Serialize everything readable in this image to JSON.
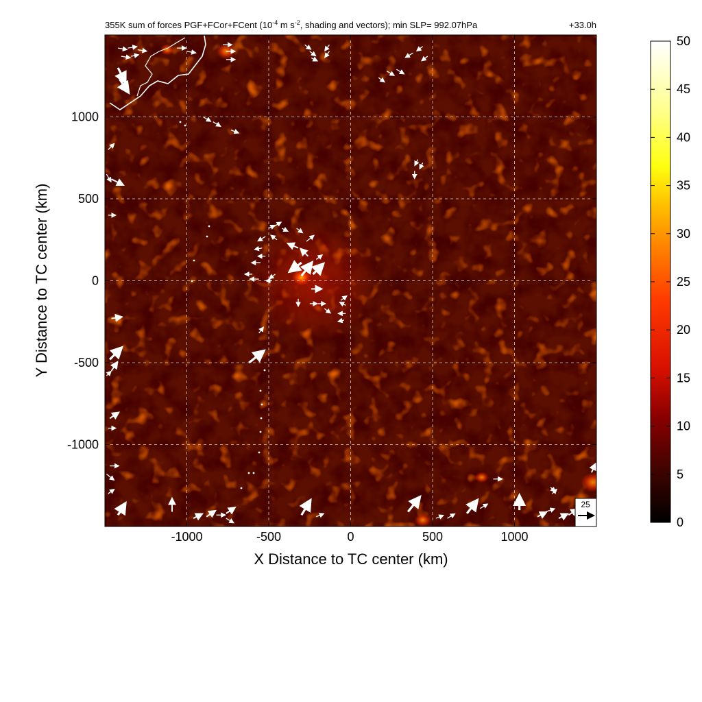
{
  "chart_data": {
    "type": "heatmap",
    "title": "355K sum of forces PGF+FCor+FCent (10-4 m s-2, shading and vectors); min SLP= 992.07hPa",
    "title_parts": {
      "pre": "355K sum of forces PGF+FCor+FCent (10",
      "exp1": "-4",
      "mid": " m s",
      "exp2": "-2",
      "post": ", shading and vectors); min SLP= 992.07hPa"
    },
    "time_label": "+33.0h",
    "xlabel": "X Distance to TC center (km)",
    "ylabel": "Y Distance to TC center (km)",
    "xlim": [
      -1500,
      1500
    ],
    "ylim": [
      -1500,
      1500
    ],
    "x_ticks": [
      -1000,
      -500,
      0,
      500,
      1000
    ],
    "y_ticks": [
      -1000,
      -500,
      0,
      500,
      1000
    ],
    "x_tick_labels": [
      "-1000",
      "-500",
      "0",
      "500",
      "1000"
    ],
    "y_tick_labels": [
      "-1000",
      "-500",
      "0",
      "500",
      "1000"
    ],
    "grid": true,
    "colorbar": {
      "min": 0,
      "max": 50,
      "ticks": [
        0,
        5,
        10,
        15,
        20,
        25,
        30,
        35,
        40,
        45,
        50
      ],
      "tick_labels": [
        "0",
        "5",
        "10",
        "15",
        "20",
        "25",
        "30",
        "35",
        "40",
        "45",
        "50"
      ],
      "colormap": [
        "#000000",
        "#8b0000",
        "#d81000",
        "#ff5a00",
        "#ffd000",
        "#ffff40",
        "#ffffff"
      ]
    },
    "background_color": "#5a0f00",
    "reference_vector": {
      "label": "25",
      "magnitude": 25
    },
    "vectors": [
      {
        "x": -1420,
        "y": 1420,
        "u": 6,
        "v": -1
      },
      {
        "x": -1360,
        "y": 1420,
        "u": 6,
        "v": 1
      },
      {
        "x": -1300,
        "y": 1410,
        "u": 6,
        "v": -1
      },
      {
        "x": -1400,
        "y": 1370,
        "u": 6,
        "v": -1
      },
      {
        "x": -1340,
        "y": 1370,
        "u": 5,
        "v": 1
      },
      {
        "x": -1420,
        "y": 1300,
        "u": 5,
        "v": -10
      },
      {
        "x": -1410,
        "y": 1230,
        "u": 6,
        "v": -9
      },
      {
        "x": -1060,
        "y": 1420,
        "u": 6,
        "v": 0
      },
      {
        "x": -1000,
        "y": 1400,
        "u": 6,
        "v": -1
      },
      {
        "x": -780,
        "y": 1440,
        "u": 6,
        "v": 0
      },
      {
        "x": -760,
        "y": 1400,
        "u": 6,
        "v": 0
      },
      {
        "x": -760,
        "y": 1350,
        "u": 6,
        "v": 0
      },
      {
        "x": -280,
        "y": 1440,
        "u": 4,
        "v": -3
      },
      {
        "x": -250,
        "y": 1400,
        "u": 4,
        "v": -3
      },
      {
        "x": -240,
        "y": 1360,
        "u": 4,
        "v": -2
      },
      {
        "x": -130,
        "y": 1440,
        "u": -3,
        "v": -4
      },
      {
        "x": -130,
        "y": 1400,
        "u": -3,
        "v": -4
      },
      {
        "x": 380,
        "y": 1390,
        "u": -5,
        "v": -3
      },
      {
        "x": 440,
        "y": 1430,
        "u": -4,
        "v": -3
      },
      {
        "x": 470,
        "y": 1370,
        "u": -4,
        "v": -3
      },
      {
        "x": 220,
        "y": 1280,
        "u": 5,
        "v": -3
      },
      {
        "x": 280,
        "y": 1290,
        "u": 5,
        "v": -3
      },
      {
        "x": 170,
        "y": 1240,
        "u": 4,
        "v": -3
      },
      {
        "x": -900,
        "y": 1000,
        "u": 5,
        "v": -3
      },
      {
        "x": -840,
        "y": 970,
        "u": 5,
        "v": -3
      },
      {
        "x": -730,
        "y": 920,
        "u": 5,
        "v": -2
      },
      {
        "x": -1480,
        "y": 800,
        "u": 4,
        "v": 4
      },
      {
        "x": -1490,
        "y": 650,
        "u": 3,
        "v": -5
      },
      {
        "x": -1460,
        "y": 620,
        "u": 8,
        "v": -4
      },
      {
        "x": -1480,
        "y": 400,
        "u": 5,
        "v": 0
      },
      {
        "x": 410,
        "y": 740,
        "u": -2,
        "v": -4
      },
      {
        "x": 440,
        "y": 720,
        "u": -2,
        "v": -4
      },
      {
        "x": 390,
        "y": 670,
        "u": 0,
        "v": -5
      },
      {
        "x": -500,
        "y": 320,
        "u": 4,
        "v": 2
      },
      {
        "x": -470,
        "y": 330,
        "u": 5,
        "v": 3
      },
      {
        "x": -420,
        "y": 320,
        "u": 4,
        "v": -2
      },
      {
        "x": -520,
        "y": 270,
        "u": -5,
        "v": -3
      },
      {
        "x": -450,
        "y": 250,
        "u": -4,
        "v": 3
      },
      {
        "x": -540,
        "y": 200,
        "u": -5,
        "v": -1
      },
      {
        "x": -520,
        "y": 150,
        "u": -5,
        "v": 0
      },
      {
        "x": -550,
        "y": 110,
        "u": -6,
        "v": 0
      },
      {
        "x": -600,
        "y": 40,
        "u": -5,
        "v": 0
      },
      {
        "x": -560,
        "y": 10,
        "u": -6,
        "v": 0
      },
      {
        "x": -460,
        "y": 40,
        "u": -4,
        "v": -3
      },
      {
        "x": -480,
        "y": 0,
        "u": -4,
        "v": 0
      },
      {
        "x": -330,
        "y": 320,
        "u": 4,
        "v": -3
      },
      {
        "x": -270,
        "y": 240,
        "u": 5,
        "v": 4
      },
      {
        "x": -320,
        "y": 200,
        "u": -7,
        "v": 3
      },
      {
        "x": -260,
        "y": 150,
        "u": -5,
        "v": 5
      },
      {
        "x": -300,
        "y": 110,
        "u": -8,
        "v": -6
      },
      {
        "x": -210,
        "y": 130,
        "u": 4,
        "v": 3
      },
      {
        "x": -300,
        "y": 30,
        "u": 7,
        "v": 9
      },
      {
        "x": -230,
        "y": 40,
        "u": 7,
        "v": 7
      },
      {
        "x": -240,
        "y": -50,
        "u": 7,
        "v": 0
      },
      {
        "x": -320,
        "y": -110,
        "u": 0,
        "v": -5
      },
      {
        "x": -250,
        "y": -140,
        "u": 5,
        "v": 0
      },
      {
        "x": -200,
        "y": -140,
        "u": 5,
        "v": 0
      },
      {
        "x": -160,
        "y": -170,
        "u": 4,
        "v": -3
      },
      {
        "x": -60,
        "y": -120,
        "u": 4,
        "v": 3
      },
      {
        "x": -30,
        "y": -150,
        "u": -4,
        "v": 2
      },
      {
        "x": -30,
        "y": -200,
        "u": -5,
        "v": 0
      },
      {
        "x": -40,
        "y": -240,
        "u": -4,
        "v": -1
      },
      {
        "x": -560,
        "y": -320,
        "u": 3,
        "v": 4
      },
      {
        "x": -620,
        "y": -500,
        "u": 10,
        "v": 8
      },
      {
        "x": -1460,
        "y": -230,
        "u": 7,
        "v": 1
      },
      {
        "x": -1470,
        "y": -480,
        "u": 8,
        "v": 8
      },
      {
        "x": -1460,
        "y": -550,
        "u": 4,
        "v": 6
      },
      {
        "x": -1490,
        "y": -580,
        "u": 3,
        "v": 3
      },
      {
        "x": -1470,
        "y": -840,
        "u": 6,
        "v": 4
      },
      {
        "x": -1480,
        "y": -900,
        "u": 5,
        "v": 0
      },
      {
        "x": -1470,
        "y": -1130,
        "u": 6,
        "v": 0
      },
      {
        "x": -1490,
        "y": -1180,
        "u": 5,
        "v": -4
      },
      {
        "x": -1480,
        "y": -1300,
        "u": 4,
        "v": 3
      },
      {
        "x": -1420,
        "y": -1430,
        "u": 5,
        "v": 8
      },
      {
        "x": -1090,
        "y": -1410,
        "u": 0,
        "v": 9
      },
      {
        "x": -960,
        "y": -1450,
        "u": 6,
        "v": 3
      },
      {
        "x": -880,
        "y": -1440,
        "u": 6,
        "v": 4
      },
      {
        "x": -820,
        "y": -1430,
        "u": 6,
        "v": 0
      },
      {
        "x": -760,
        "y": -1450,
        "u": 5,
        "v": -3
      },
      {
        "x": -760,
        "y": -1420,
        "u": 6,
        "v": 4
      },
      {
        "x": -300,
        "y": -1430,
        "u": 6,
        "v": 10
      },
      {
        "x": -210,
        "y": -1440,
        "u": 5,
        "v": 2
      },
      {
        "x": 350,
        "y": -1410,
        "u": 8,
        "v": 10
      },
      {
        "x": 520,
        "y": -1450,
        "u": 5,
        "v": 2
      },
      {
        "x": 590,
        "y": -1450,
        "u": 5,
        "v": 3
      },
      {
        "x": 710,
        "y": -1420,
        "u": 7,
        "v": 9
      },
      {
        "x": 790,
        "y": -1390,
        "u": 5,
        "v": 3
      },
      {
        "x": 870,
        "y": -1210,
        "u": 6,
        "v": 0
      },
      {
        "x": 1030,
        "y": -1400,
        "u": 0,
        "v": 10
      },
      {
        "x": 1140,
        "y": -1440,
        "u": 6,
        "v": 3
      },
      {
        "x": 1190,
        "y": -1410,
        "u": 6,
        "v": 2
      },
      {
        "x": 1220,
        "y": -1260,
        "u": 3,
        "v": -3
      },
      {
        "x": 1230,
        "y": -1300,
        "u": 3,
        "v": 3
      },
      {
        "x": 1270,
        "y": -1450,
        "u": 6,
        "v": 3
      },
      {
        "x": 1330,
        "y": -1430,
        "u": 6,
        "v": 4
      },
      {
        "x": 1470,
        "y": -1170,
        "u": 3,
        "v": 6
      }
    ]
  }
}
